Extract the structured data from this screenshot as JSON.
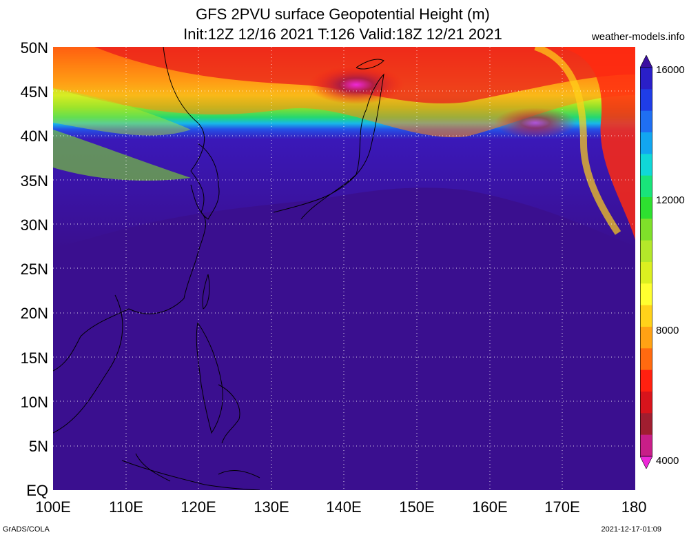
{
  "title_line1": "GFS 2PVU surface Geopotential Height (m)",
  "title_line2": "Init:12Z 12/16 2021 T:126 Valid:18Z 12/21 2021",
  "credit": "weather-models.info",
  "footer_left": "GrADS/COLA",
  "footer_right": "2021-12-17-01:09",
  "map": {
    "lat_labels": [
      "50N",
      "45N",
      "40N",
      "35N",
      "30N",
      "25N",
      "20N",
      "15N",
      "10N",
      "5N",
      "EQ"
    ],
    "lon_labels": [
      "100E",
      "110E",
      "120E",
      "130E",
      "140E",
      "150E",
      "160E",
      "170E",
      "180"
    ],
    "lat_range": [
      0,
      50
    ],
    "lon_range": [
      100,
      180
    ],
    "grid": "dotted"
  },
  "colorbar": {
    "labels": [
      "16000",
      "12000",
      "8000",
      "4000"
    ],
    "label_values": [
      16000,
      12000,
      8000,
      4000
    ],
    "range": [
      4000,
      16000
    ],
    "colors_top_to_bottom": [
      "#3b0fa0",
      "#2a1fc8",
      "#1f3de6",
      "#1f6ff2",
      "#12a6f0",
      "#10d8d8",
      "#19e47a",
      "#2ee030",
      "#7fe02a",
      "#b4e82a",
      "#dcf020",
      "#ffff30",
      "#ffd21a",
      "#ffa214",
      "#ff6a10",
      "#ff2010",
      "#d8141c",
      "#a01e30",
      "#c81e88",
      "#ee28d8"
    ]
  }
}
